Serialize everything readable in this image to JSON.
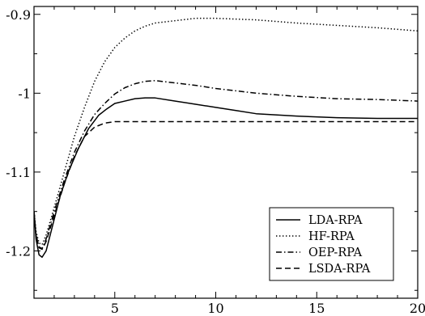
{
  "chart_data": {
    "type": "line",
    "title": "",
    "xlabel": "",
    "ylabel": "",
    "xlim": [
      1,
      20
    ],
    "ylim": [
      -1.26,
      -0.89
    ],
    "grid": false,
    "legend_position": "bottom-right",
    "xticks": [
      5,
      10,
      15,
      20
    ],
    "xtick_labels": [
      "5",
      "10",
      "15",
      "20"
    ],
    "yticks": [
      -0.9,
      -1.0,
      -1.1,
      -1.2
    ],
    "ytick_labels": [
      "-0.9",
      "-1",
      "-1.1",
      "-1.2"
    ],
    "series": [
      {
        "name": "LDA-RPA",
        "dash": "solid",
        "points": [
          [
            1.0,
            -1.15
          ],
          [
            1.1,
            -1.185
          ],
          [
            1.25,
            -1.205
          ],
          [
            1.4,
            -1.208
          ],
          [
            1.6,
            -1.2
          ],
          [
            1.9,
            -1.17
          ],
          [
            2.3,
            -1.13
          ],
          [
            2.7,
            -1.1
          ],
          [
            3.2,
            -1.07
          ],
          [
            3.7,
            -1.045
          ],
          [
            4.2,
            -1.028
          ],
          [
            4.6,
            -1.02
          ],
          [
            5.0,
            -1.013
          ],
          [
            5.5,
            -1.01
          ],
          [
            6.0,
            -1.007
          ],
          [
            6.5,
            -1.006
          ],
          [
            7.0,
            -1.006
          ],
          [
            8.0,
            -1.01
          ],
          [
            9.0,
            -1.014
          ],
          [
            10.0,
            -1.018
          ],
          [
            11.0,
            -1.022
          ],
          [
            12.0,
            -1.026
          ],
          [
            14.0,
            -1.029
          ],
          [
            16.0,
            -1.031
          ],
          [
            18.0,
            -1.032
          ],
          [
            20.0,
            -1.032
          ]
        ]
      },
      {
        "name": "HF-RPA",
        "dash": "dotted",
        "points": [
          [
            1.0,
            -1.15
          ],
          [
            1.1,
            -1.175
          ],
          [
            1.25,
            -1.19
          ],
          [
            1.4,
            -1.192
          ],
          [
            1.6,
            -1.18
          ],
          [
            2.0,
            -1.145
          ],
          [
            2.5,
            -1.1
          ],
          [
            3.0,
            -1.055
          ],
          [
            3.5,
            -1.018
          ],
          [
            4.0,
            -0.985
          ],
          [
            4.5,
            -0.96
          ],
          [
            5.0,
            -0.942
          ],
          [
            5.5,
            -0.93
          ],
          [
            6.0,
            -0.921
          ],
          [
            6.5,
            -0.915
          ],
          [
            7.0,
            -0.911
          ],
          [
            8.0,
            -0.908
          ],
          [
            9.0,
            -0.905
          ],
          [
            10.0,
            -0.905
          ],
          [
            12.0,
            -0.907
          ],
          [
            14.0,
            -0.911
          ],
          [
            16.0,
            -0.914
          ],
          [
            18.0,
            -0.917
          ],
          [
            20.0,
            -0.921
          ]
        ]
      },
      {
        "name": "OEP-RPA",
        "dash": "dashdot",
        "points": [
          [
            1.0,
            -1.15
          ],
          [
            1.1,
            -1.18
          ],
          [
            1.25,
            -1.195
          ],
          [
            1.4,
            -1.197
          ],
          [
            1.6,
            -1.185
          ],
          [
            2.0,
            -1.15
          ],
          [
            2.5,
            -1.11
          ],
          [
            3.0,
            -1.075
          ],
          [
            3.5,
            -1.048
          ],
          [
            4.0,
            -1.027
          ],
          [
            4.5,
            -1.013
          ],
          [
            5.0,
            -1.001
          ],
          [
            5.5,
            -0.993
          ],
          [
            6.0,
            -0.988
          ],
          [
            6.5,
            -0.985
          ],
          [
            7.0,
            -0.984
          ],
          [
            8.0,
            -0.987
          ],
          [
            9.0,
            -0.99
          ],
          [
            10.0,
            -0.994
          ],
          [
            12.0,
            -1.0
          ],
          [
            14.0,
            -1.004
          ],
          [
            16.0,
            -1.007
          ],
          [
            18.0,
            -1.008
          ],
          [
            20.0,
            -1.01
          ]
        ]
      },
      {
        "name": "LSDA-RPA",
        "dash": "dashed",
        "points": [
          [
            1.0,
            -1.15
          ],
          [
            1.1,
            -1.18
          ],
          [
            1.25,
            -1.196
          ],
          [
            1.4,
            -1.198
          ],
          [
            1.6,
            -1.188
          ],
          [
            2.0,
            -1.155
          ],
          [
            2.5,
            -1.115
          ],
          [
            3.0,
            -1.08
          ],
          [
            3.5,
            -1.055
          ],
          [
            4.0,
            -1.043
          ],
          [
            4.5,
            -1.038
          ],
          [
            5.0,
            -1.036
          ],
          [
            6.0,
            -1.036
          ],
          [
            8.0,
            -1.036
          ],
          [
            10.0,
            -1.036
          ],
          [
            14.0,
            -1.036
          ],
          [
            20.0,
            -1.036
          ]
        ]
      }
    ]
  }
}
